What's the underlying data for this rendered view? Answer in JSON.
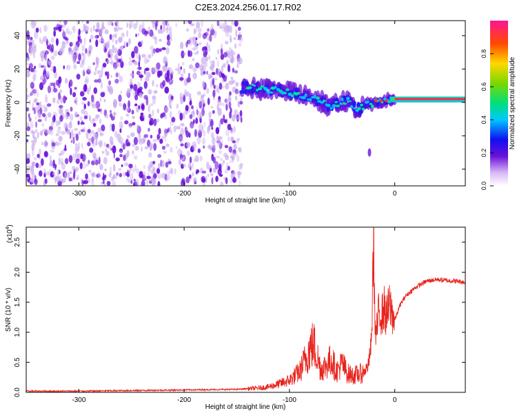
{
  "figure": {
    "title": "C2E3.2024.256.01.17.R02"
  },
  "colors": {
    "snr_line": "#e8231c",
    "spec_purple": "#6a10d8",
    "spec_light": "#c7a8ee"
  },
  "chart_data": [
    {
      "type": "heatmap",
      "name": "spectrogram",
      "xlabel": "Height of straight line (km)",
      "ylabel": "Frequency (Hz)",
      "xlim": [
        -350,
        67
      ],
      "ylim": [
        -50,
        49
      ],
      "xticks": [
        -300,
        -200,
        -100,
        0
      ],
      "xtick_labels": [
        "-300",
        "-200",
        "-100",
        "0"
      ],
      "yticks": [
        -40,
        -20,
        0,
        20,
        40
      ],
      "ytick_labels": [
        "-40",
        "-20",
        "0",
        "20",
        "40"
      ],
      "features": [
        {
          "label": "broadband noise",
          "x_range": [
            -350,
            -145
          ],
          "y_range": [
            -50,
            49
          ],
          "amplitude": 0.2
        },
        {
          "label": "signal trace",
          "points": [
            [
              -145,
              9
            ],
            [
              -120,
              8
            ],
            [
              -100,
              6
            ],
            [
              -80,
              3
            ],
            [
              -60,
              -2
            ],
            [
              -45,
              1
            ],
            [
              -35,
              -4
            ],
            [
              -25,
              -1
            ],
            [
              -15,
              0
            ],
            [
              0,
              2
            ],
            [
              20,
              2
            ],
            [
              67,
              2
            ]
          ],
          "amplitude": 0.9
        },
        {
          "label": "artifact",
          "x": -24,
          "y": -30,
          "amplitude": 0.2
        }
      ],
      "colorbar": {
        "label": "Normalized spectral amplitude",
        "ticks": [
          0.0,
          0.2,
          0.4,
          0.6,
          0.8
        ],
        "tick_labels": [
          "0.0",
          "0.2",
          "0.4",
          "0.6",
          "0.8"
        ],
        "range": [
          0,
          1
        ]
      }
    },
    {
      "type": "line",
      "name": "snr",
      "xlabel": "Height of straight line (km)",
      "ylabel": "SNR (10 * v/v)",
      "yscale_label": "(x10",
      "yscale_exp": "4",
      "yscale_close": ")",
      "xlim": [
        -350,
        67
      ],
      "ylim": [
        0,
        2.75
      ],
      "xticks": [
        -300,
        -200,
        -100,
        0
      ],
      "xtick_labels": [
        "-300",
        "-200",
        "-100",
        "0"
      ],
      "yticks": [
        0.0,
        0.5,
        1.0,
        1.5,
        2.0,
        2.5
      ],
      "ytick_labels": [
        "0.0",
        "0.5",
        "1.0",
        "1.5",
        "2.0",
        "2.5"
      ],
      "series": [
        {
          "x": [
            -350,
            -300,
            -250,
            -200,
            -150,
            -130,
            -120,
            -110,
            -100,
            -90,
            -85,
            -80,
            -77,
            -75,
            -72,
            -70,
            -65,
            -60,
            -57,
            -55,
            -50,
            -45,
            -40,
            -35,
            -30,
            -25,
            -22,
            -20,
            -19,
            -18,
            -16,
            -15,
            -12,
            -10,
            -8,
            -5,
            0,
            5,
            10,
            20,
            30,
            40,
            50,
            60,
            67
          ],
          "y": [
            0.02,
            0.02,
            0.03,
            0.04,
            0.05,
            0.07,
            0.09,
            0.14,
            0.2,
            0.35,
            0.55,
            0.75,
            0.8,
            0.68,
            0.5,
            0.38,
            0.45,
            0.55,
            0.42,
            0.35,
            0.48,
            0.32,
            0.28,
            0.3,
            0.32,
            0.45,
            0.85,
            2.75,
            1.3,
            0.9,
            1.2,
            1.35,
            1.3,
            1.4,
            1.25,
            1.45,
            1.2,
            1.45,
            1.6,
            1.75,
            1.85,
            1.88,
            1.86,
            1.85,
            1.83
          ]
        }
      ]
    }
  ]
}
